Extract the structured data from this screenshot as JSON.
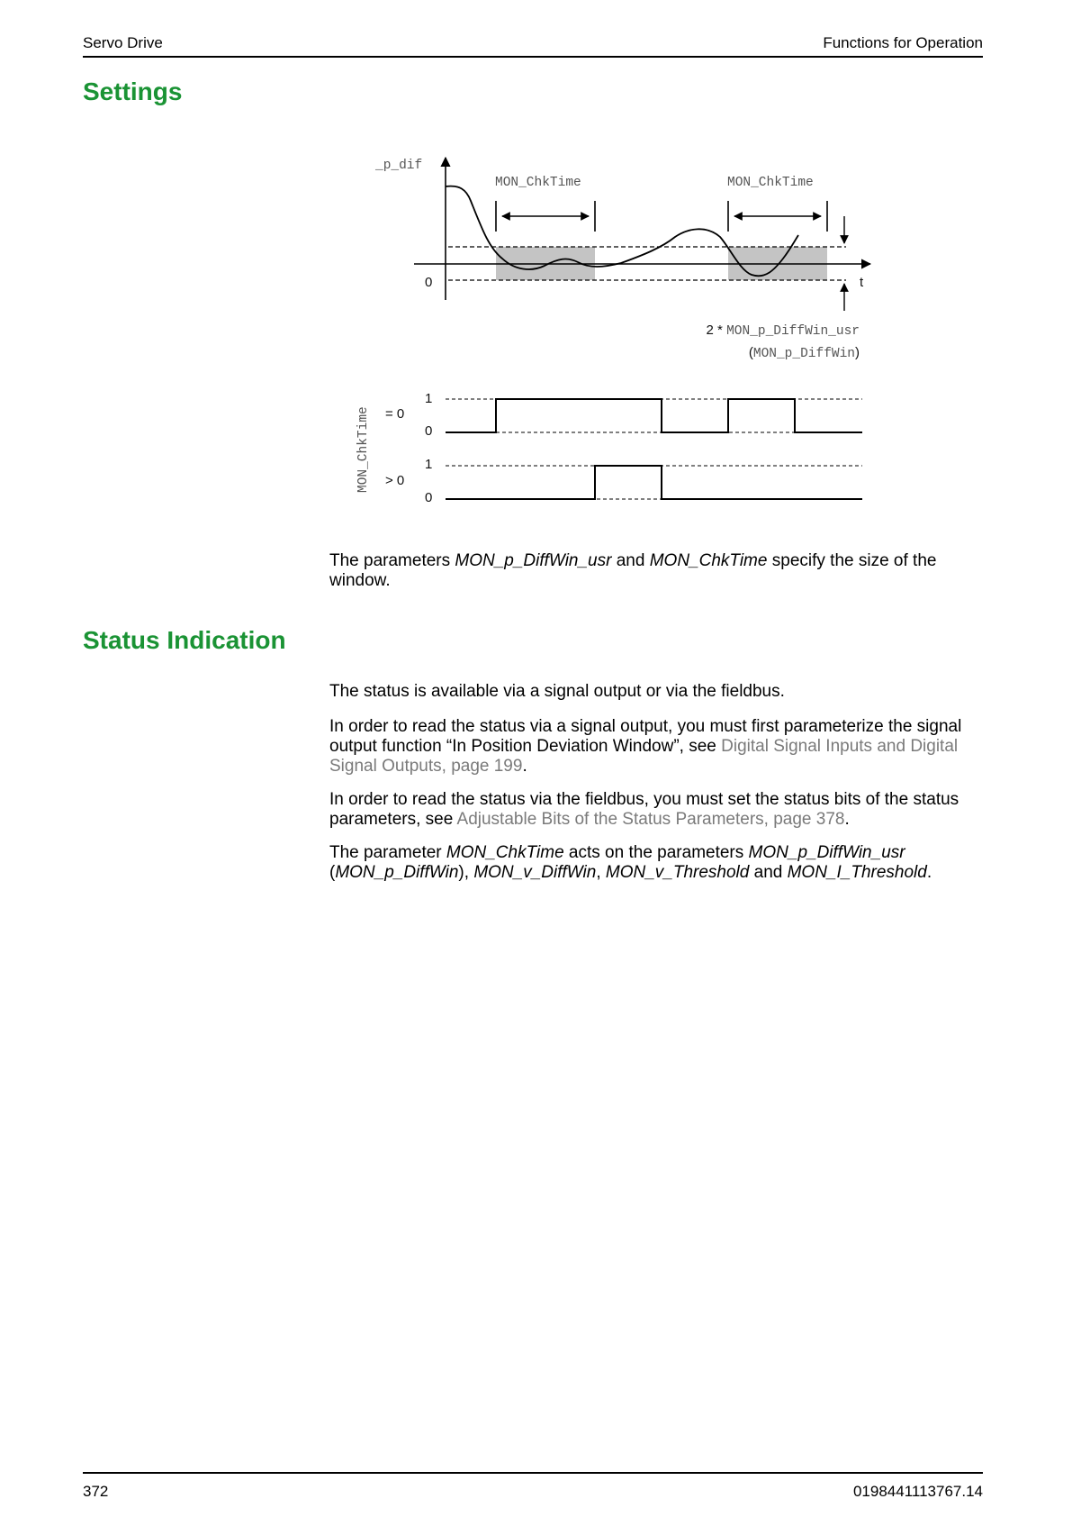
{
  "header": {
    "left": "Servo Drive",
    "right": "Functions for Operation"
  },
  "sections": {
    "settings": {
      "title": "Settings"
    },
    "status": {
      "title": "Status Indication"
    }
  },
  "diagram": {
    "y_axis_label": "_p_dif",
    "x_axis_label": "t",
    "zero_label": "0",
    "window_label_1": "MON_ChkTime",
    "window_label_2": "MON_ChkTime",
    "diffwin_prefix": "2 * ",
    "diffwin_param": "MON_p_DiffWin_usr",
    "diffwin_alt_open": "(",
    "diffwin_alt_param": "MON_p_DiffWin",
    "diffwin_alt_close": ")",
    "vertical_label": "MON_ChkTime",
    "row1_condition": "= 0",
    "row2_condition": "> 0",
    "level_high": "1",
    "level_low": "0"
  },
  "settings_text": {
    "p1_a": "The parameters ",
    "p1_b": "MON_p_DiffWin_usr",
    "p1_c": " and ",
    "p1_d": "MON_ChkTime",
    "p1_e": " specify the size of the window."
  },
  "status_text": {
    "p1": "The status is available via a signal output or via the fieldbus.",
    "p2_a": "In order to read the status via a signal output, you must first parameterize the signal output function “In Position Deviation Window”, see ",
    "p2_link": "Digital Signal Inputs and Digital Signal Outputs, page 199",
    "p2_end": ".",
    "p3_a": "In order to read the status via the fieldbus, you must set the status bits of the status parameters, see ",
    "p3_link": "Adjustable Bits of the Status Parameters, page 378",
    "p3_end": ".",
    "p4_a": "The parameter ",
    "p4_b": "MON_ChkTime",
    "p4_c": " acts on the parameters ",
    "p4_d": "MON_p_DiffWin_usr",
    "p4_e": " (",
    "p4_f": "MON_p_DiffWin",
    "p4_g": "), ",
    "p4_h": "MON_v_DiffWin",
    "p4_i": ", ",
    "p4_j": "MON_v_Threshold",
    "p4_k": " and ",
    "p4_l": "MON_I_Threshold",
    "p4_m": "."
  },
  "footer": {
    "page_number": "372",
    "doc_id": "0198441113767.14"
  }
}
